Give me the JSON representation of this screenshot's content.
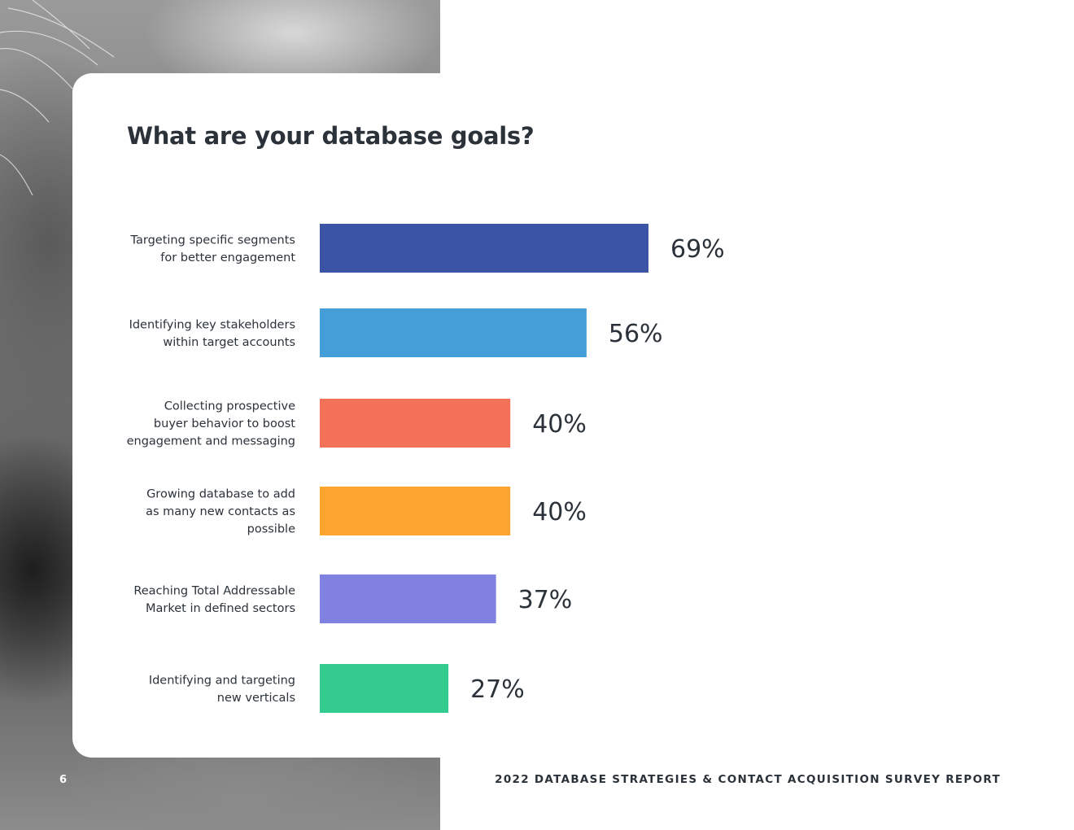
{
  "chart_data": {
    "type": "bar",
    "orientation": "horizontal",
    "title": "What are your database goals?",
    "categories": [
      [
        "Targeting specific segments",
        "for better engagement"
      ],
      [
        "Identifying key stakeholders",
        "within target accounts"
      ],
      [
        "Collecting prospective",
        "buyer behavior to boost",
        "engagement and messaging"
      ],
      [
        "Growing database to add",
        "as many new contacts as",
        "possible"
      ],
      [
        "Reaching Total Addressable",
        "Market in defined sectors"
      ],
      [
        "Identifying and targeting",
        "new verticals"
      ]
    ],
    "values": [
      69,
      56,
      40,
      40,
      37,
      27
    ],
    "value_labels": [
      "69%",
      "56%",
      "40%",
      "40%",
      "37%",
      "27%"
    ],
    "colors": [
      "#3b54a6",
      "#459ed8",
      "#f37158",
      "#fca42f",
      "#8181e1",
      "#34cb8f"
    ],
    "grid": false,
    "legend": "none"
  },
  "footer": {
    "page_number": "6",
    "report_title": "2022 DATABASE STRATEGIES & CONTACT ACQUISITION SURVEY REPORT"
  }
}
